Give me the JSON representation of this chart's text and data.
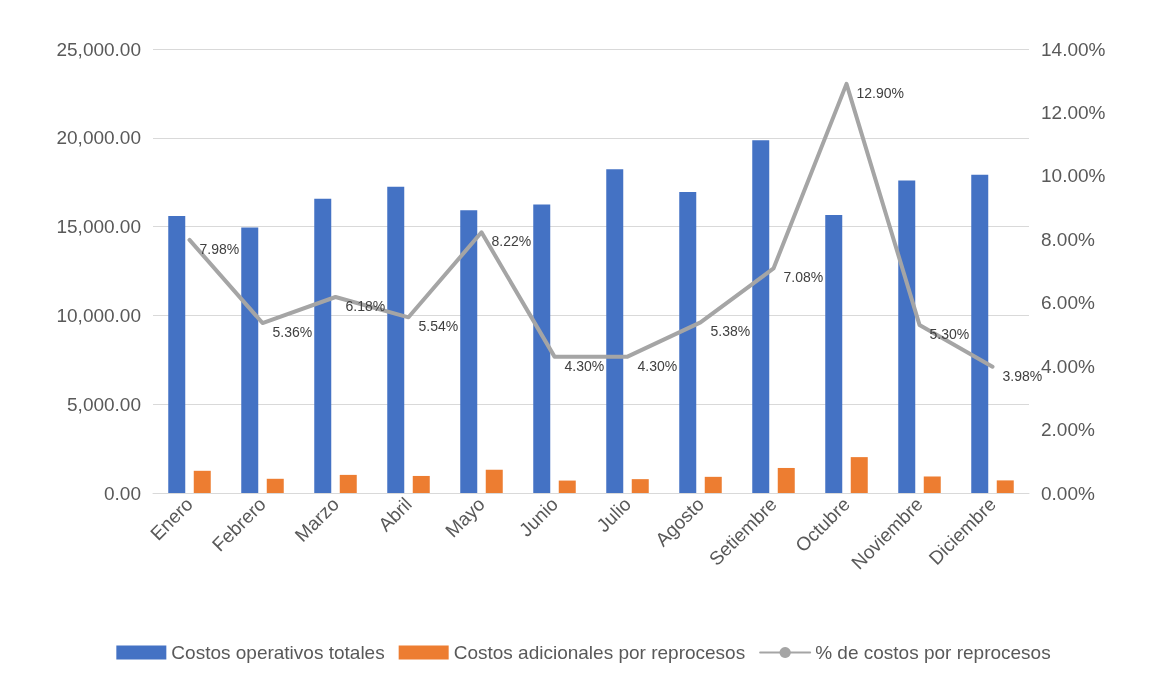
{
  "chart_data": {
    "type": "bar",
    "categories": [
      "Enero",
      "Febrero",
      "Marzo",
      "Abril",
      "Mayo",
      "Junio",
      "Julio",
      "Agosto",
      "Setiembre",
      "Octubre",
      "Noviembre",
      "Diciembre"
    ],
    "series": [
      {
        "name": "Costos operativos totales",
        "color": "#4472c4",
        "values": [
          15600,
          14950,
          16570,
          17240,
          15920,
          16250,
          18230,
          16950,
          19860,
          15650,
          17600,
          17920
        ]
      },
      {
        "name": "Costos adicionales por reprocesos",
        "color": "#ed7d31",
        "values": [
          1250,
          800,
          1020,
          960,
          1310,
          700,
          780,
          910,
          1410,
          2020,
          930,
          710
        ]
      },
      {
        "name": "% de costos por reprocesos",
        "type": "line",
        "axis": "y2",
        "color": "#a5a5a5",
        "values": [
          7.98,
          5.36,
          6.18,
          5.54,
          8.22,
          4.3,
          4.3,
          5.38,
          7.08,
          12.9,
          5.3,
          3.98
        ],
        "value_labels": [
          "7.98%",
          "5.36%",
          "6.18%",
          "5.54%",
          "8.22%",
          "4.30%",
          "4.30%",
          "5.38%",
          "7.08%",
          "12.90%",
          "5.30%",
          "3.98%"
        ]
      }
    ],
    "ylim": [
      0,
      25000
    ],
    "yticks": [
      {
        "value": 0,
        "label": "0.00"
      },
      {
        "value": 5000,
        "label": "5,000.00"
      },
      {
        "value": 10000,
        "label": "10,000.00"
      },
      {
        "value": 15000,
        "label": "15,000.00"
      },
      {
        "value": 20000,
        "label": "20,000.00"
      },
      {
        "value": 25000,
        "label": "25,000.00"
      }
    ],
    "y2lim": [
      0,
      14
    ],
    "y2ticks": [
      {
        "value": 0,
        "label": "0.00%"
      },
      {
        "value": 2,
        "label": "2.00%"
      },
      {
        "value": 4,
        "label": "4.00%"
      },
      {
        "value": 6,
        "label": "6.00%"
      },
      {
        "value": 8,
        "label": "8.00%"
      },
      {
        "value": 10,
        "label": "10.00%"
      },
      {
        "value": 12,
        "label": "12.00%"
      },
      {
        "value": 14,
        "label": "14.00%"
      }
    ],
    "grid": "y",
    "legend": "bottom",
    "marker": "none",
    "line_style": "solid"
  }
}
